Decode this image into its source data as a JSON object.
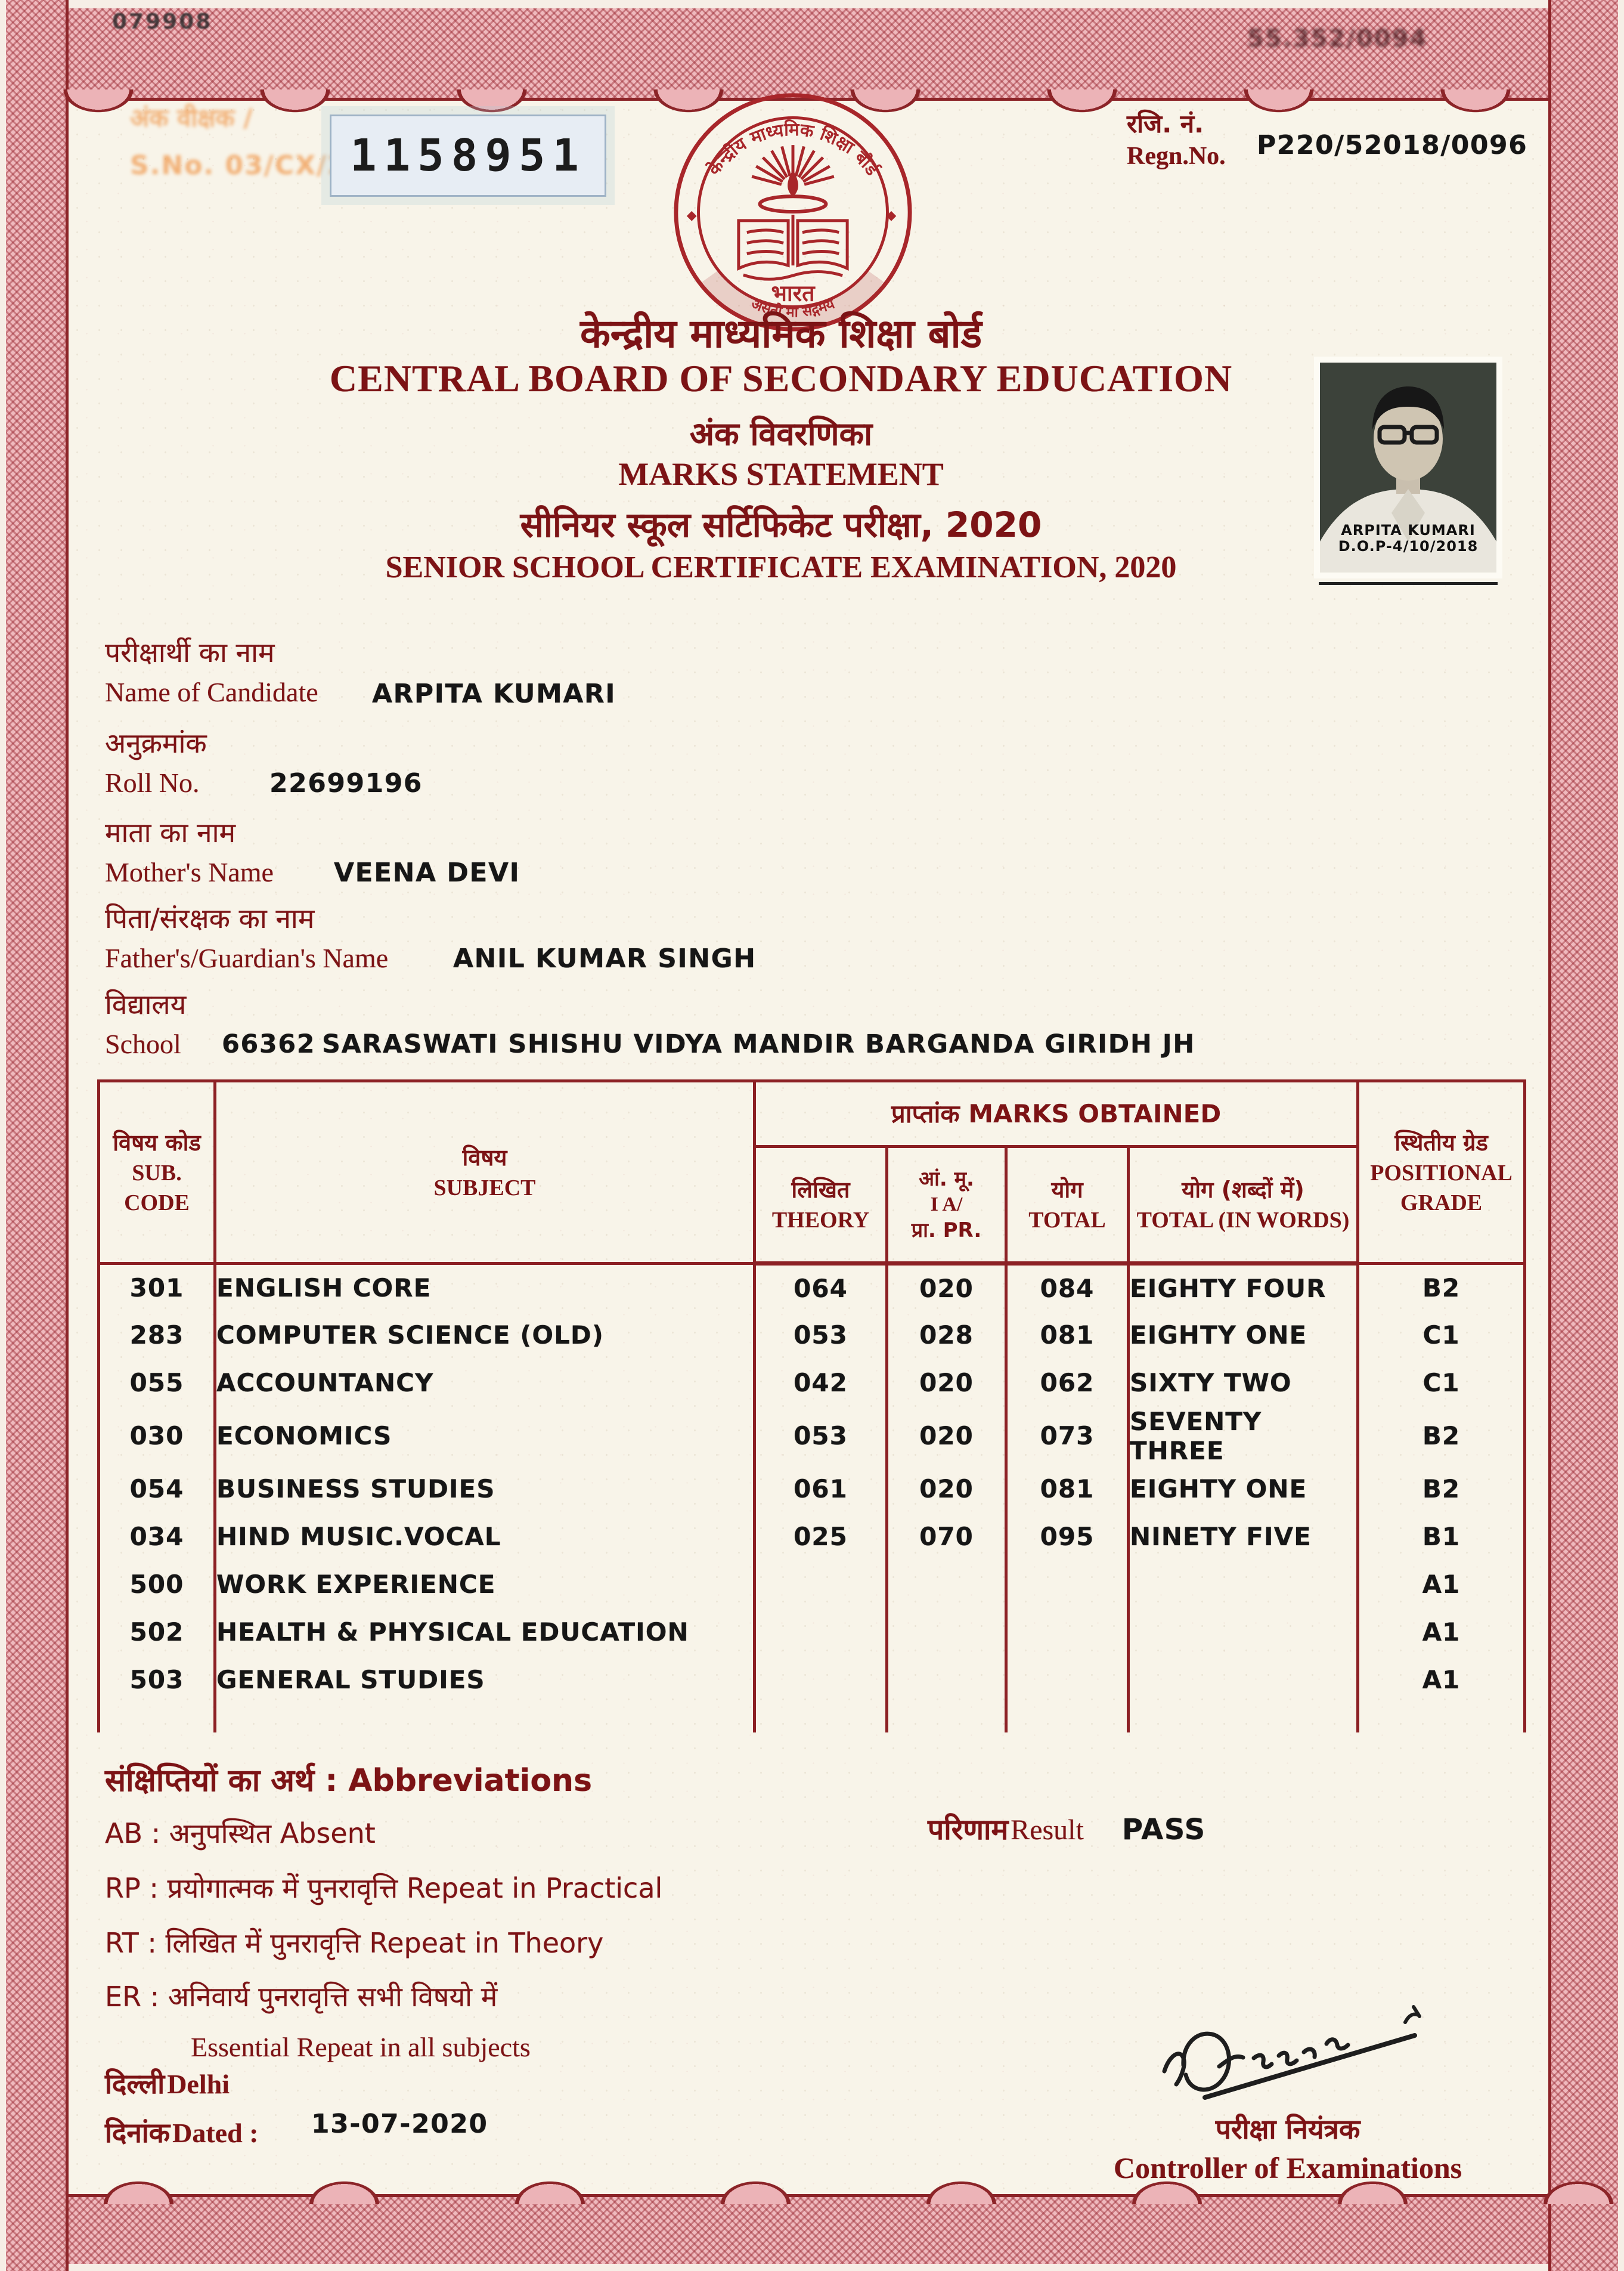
{
  "document": {
    "corner_marks": {
      "top_left": "079908",
      "top_right": "55.352/0094"
    },
    "faint_stamp": {
      "line1": "अंक वीक्षक /",
      "line2": "S.No. 03/CX/2020"
    },
    "serial_number": "1158951",
    "regn": {
      "label_hi": "रजि. नं.",
      "label_en": "Regn.No.",
      "value": "P220/52018/0096"
    },
    "logo": {
      "ring_text": "केन्द्रीय माध्यमिक शिक्षा बोर्ड",
      "country": "भारत",
      "motto": "असतो मा सद्गमय"
    },
    "photo": {
      "name": "ARPITA KUMARI",
      "dop": "D.O.P-4/10/2018"
    },
    "titles": {
      "board_hi": "केन्द्रीय माध्यमिक शिक्षा बोर्ड",
      "board_en": "CENTRAL BOARD OF SECONDARY EDUCATION",
      "doc_hi": "अंक विवरणिका",
      "doc_en": "MARKS STATEMENT",
      "exam_hi": "सीनियर स्कूल सर्टिफिकेट परीक्षा, 2020",
      "exam_en": "SENIOR SCHOOL CERTIFICATE EXAMINATION, 2020"
    },
    "fields": {
      "candidate": {
        "hi": "परीक्षार्थी का नाम",
        "en": "Name of Candidate",
        "value": "ARPITA KUMARI"
      },
      "roll": {
        "hi": "अनुक्रमांक",
        "en": "Roll No.",
        "value": "22699196"
      },
      "mother": {
        "hi": "माता का नाम",
        "en": "Mother's Name",
        "value": "VEENA DEVI"
      },
      "father": {
        "hi": "पिता/संरक्षक का नाम",
        "en": "Father's/Guardian's Name",
        "value": "ANIL KUMAR SINGH"
      },
      "school": {
        "hi": "विद्यालय",
        "en": "School",
        "code": "66362",
        "value": "SARASWATI SHISHU VIDYA MANDIR BARGANDA GIRIDH JH"
      }
    },
    "table": {
      "marks_obtained_header": "प्राप्तांक MARKS OBTAINED",
      "col_sub_code": [
        "विषय कोड",
        "SUB.",
        "CODE"
      ],
      "col_subject": [
        "विषय",
        "SUBJECT"
      ],
      "col_theory": [
        "लिखित",
        "THEORY"
      ],
      "col_ia": [
        "आं. मू.",
        "I A/",
        "प्रा. PR."
      ],
      "col_total": [
        "योग",
        "TOTAL"
      ],
      "col_words": [
        "योग (शब्दों में)",
        "TOTAL (IN WORDS)"
      ],
      "col_grade": [
        "स्थितीय ग्रेड",
        "POSITIONAL",
        "GRADE"
      ],
      "rows": [
        {
          "code": "301",
          "subject": "ENGLISH CORE",
          "theory": "064",
          "ia": "020",
          "total": "084",
          "words": "EIGHTY FOUR",
          "grade": "B2"
        },
        {
          "code": "283",
          "subject": "COMPUTER SCIENCE (OLD)",
          "theory": "053",
          "ia": "028",
          "total": "081",
          "words": "EIGHTY ONE",
          "grade": "C1"
        },
        {
          "code": "055",
          "subject": "ACCOUNTANCY",
          "theory": "042",
          "ia": "020",
          "total": "062",
          "words": "SIXTY TWO",
          "grade": "C1"
        },
        {
          "code": "030",
          "subject": "ECONOMICS",
          "theory": "053",
          "ia": "020",
          "total": "073",
          "words": "SEVENTY THREE",
          "grade": "B2"
        },
        {
          "code": "054",
          "subject": "BUSINESS STUDIES",
          "theory": "061",
          "ia": "020",
          "total": "081",
          "words": "EIGHTY ONE",
          "grade": "B2"
        },
        {
          "code": "034",
          "subject": "HIND MUSIC.VOCAL",
          "theory": "025",
          "ia": "070",
          "total": "095",
          "words": "NINETY FIVE",
          "grade": "B1"
        },
        {
          "code": "500",
          "subject": "WORK EXPERIENCE",
          "theory": "",
          "ia": "",
          "total": "",
          "words": "",
          "grade": "A1"
        },
        {
          "code": "502",
          "subject": "HEALTH & PHYSICAL EDUCATION",
          "theory": "",
          "ia": "",
          "total": "",
          "words": "",
          "grade": "A1"
        },
        {
          "code": "503",
          "subject": "GENERAL STUDIES",
          "theory": "",
          "ia": "",
          "total": "",
          "words": "",
          "grade": "A1"
        }
      ]
    },
    "abbreviations": {
      "title": "संक्षिप्तियों का अर्थ : Abbreviations",
      "items": [
        "AB : अनुपस्थित Absent",
        "RP : प्रयोगात्मक में पुनरावृत्ति Repeat in Practical",
        "RT : लिखित में पुनरावृत्ति Repeat in Theory",
        "ER : अनिवार्य पुनरावृत्ति सभी विषयो में",
        "Essential Repeat in all subjects"
      ]
    },
    "result": {
      "label_hi": "परिणाम",
      "label_en": "Result",
      "value": "PASS"
    },
    "footer": {
      "place_hi": "दिल्ली",
      "place_en": "Delhi",
      "date_hi": "दिनांक",
      "date_en": "Dated :",
      "date_value": "13-07-2020",
      "signatory_hi": "परीक्षा नियंत्रक",
      "signatory_en": "Controller of Examinations"
    },
    "colors": {
      "maroon": "#7c1315",
      "seal": "#a8262a",
      "border_pink": "#efb9bd",
      "ink_black": "#161616"
    }
  }
}
